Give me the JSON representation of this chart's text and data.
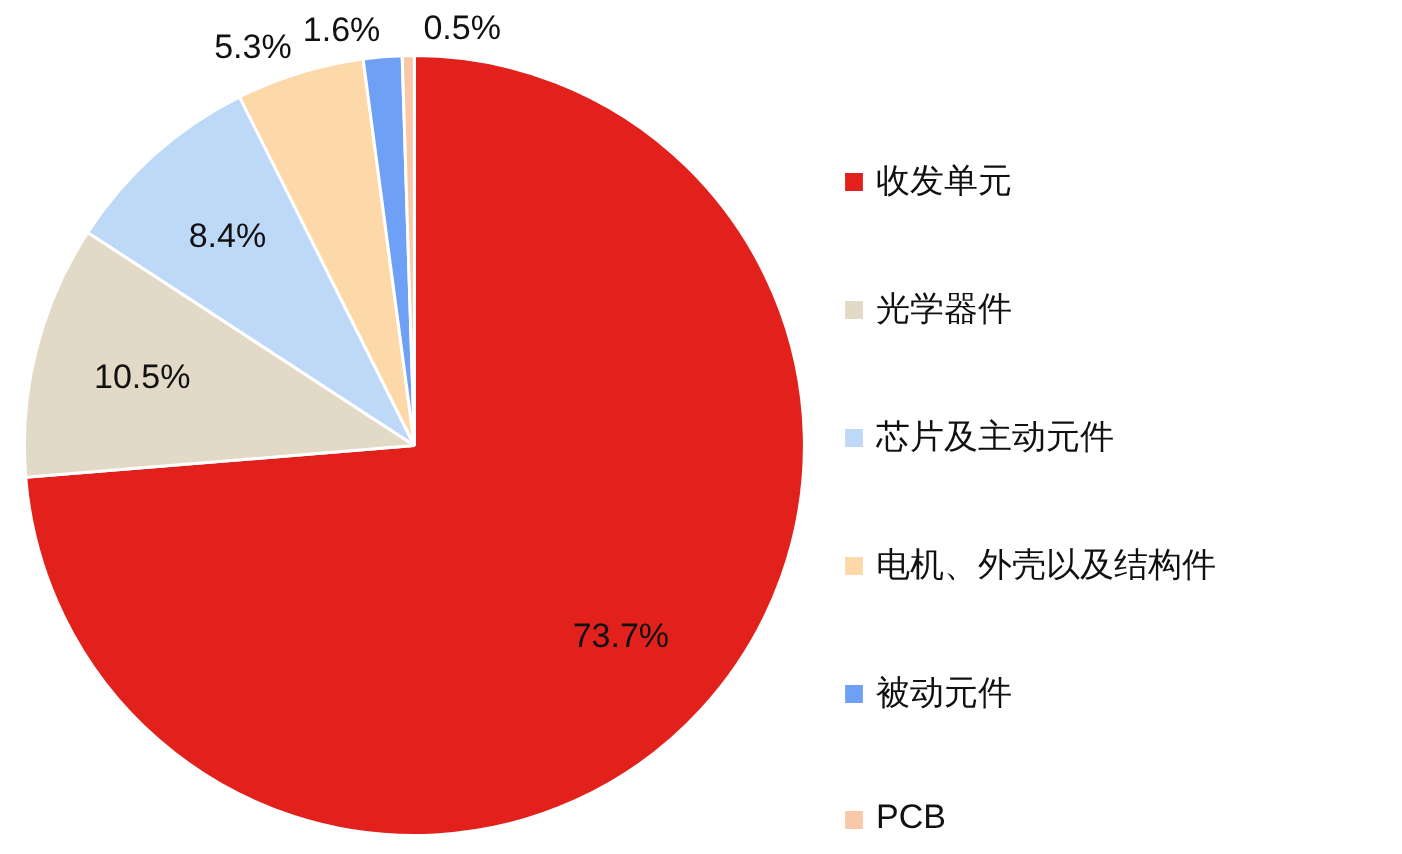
{
  "chart_data": {
    "type": "pie",
    "categories": [
      "收发单元",
      "光学器件",
      "芯片及主动元件",
      "电机、外壳以及结构件",
      "被动元件",
      "PCB"
    ],
    "values": [
      73.7,
      10.5,
      8.4,
      5.3,
      1.6,
      0.5
    ],
    "value_labels": [
      "73.7%",
      "10.5%",
      "8.4%",
      "5.3%",
      "1.6%",
      "0.5%"
    ],
    "colors": [
      "#e3211c",
      "#e2dac6",
      "#bed8f8",
      "#fdd9a9",
      "#6ea1f6",
      "#f8c8a8"
    ],
    "legend": "right"
  }
}
